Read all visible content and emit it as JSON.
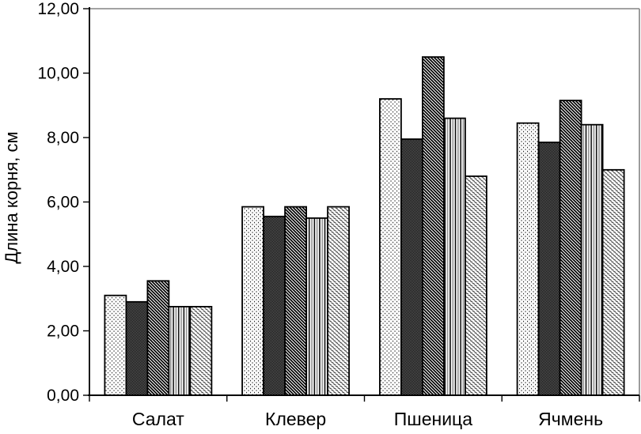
{
  "chart_data": {
    "type": "bar",
    "title": "",
    "ylabel": "Длина корня, см",
    "xlabel": "",
    "categories": [
      "Салат",
      "Клевер",
      "Пшеница",
      "Ячмень"
    ],
    "series": [
      {
        "name": "pattern-fine-dots",
        "values": [
          3.1,
          5.85,
          9.2,
          8.45
        ]
      },
      {
        "name": "pattern-dark-checker",
        "values": [
          2.9,
          5.55,
          7.95,
          7.85
        ]
      },
      {
        "name": "pattern-dense-diagonal",
        "values": [
          3.55,
          5.85,
          10.5,
          9.15
        ]
      },
      {
        "name": "pattern-vertical-lines",
        "values": [
          2.75,
          5.5,
          8.6,
          8.4
        ]
      },
      {
        "name": "pattern-light-diagonal",
        "values": [
          2.75,
          5.85,
          6.8,
          7.0
        ]
      }
    ],
    "ylim": [
      0,
      12
    ],
    "ytick_step": 2,
    "ytick_labels": [
      "0,00",
      "2,00",
      "4,00",
      "6,00",
      "8,00",
      "10,00",
      "12,00"
    ],
    "decimal_separator": ",",
    "grid": false,
    "legend": "none",
    "colors": {
      "bar_outline": "#000000",
      "axis": "#000000",
      "frame": "#848484",
      "pattern_dark": "#6e6e6e",
      "background": "#ffffff"
    }
  }
}
